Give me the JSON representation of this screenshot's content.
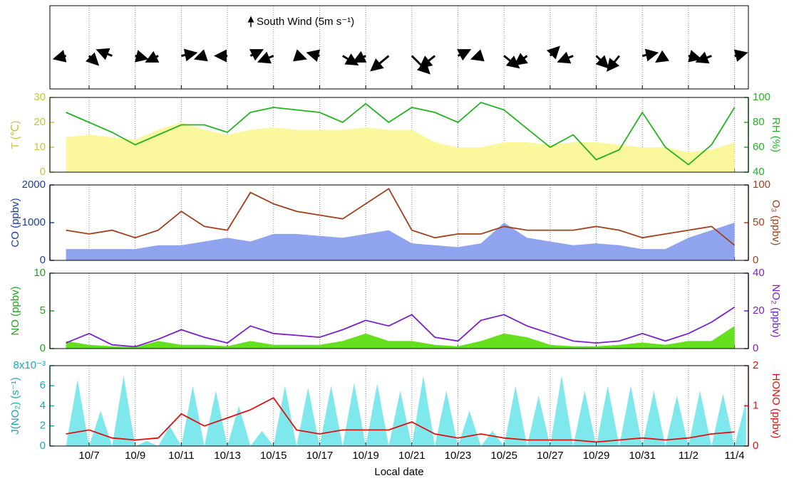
{
  "chart_data": [
    {
      "type": "quiver",
      "title": "South Wind (5m s⁻¹)",
      "color": "#000000",
      "x": [
        6,
        7,
        8,
        9,
        10,
        11,
        12,
        13,
        14,
        15,
        16,
        17,
        18,
        19,
        20,
        21,
        22,
        23,
        24,
        25,
        26,
        27,
        28,
        29,
        30,
        31,
        32,
        33,
        34,
        35
      ],
      "u": [
        -4,
        3,
        -5,
        4,
        -4,
        5,
        -3,
        -4,
        4,
        -5,
        3,
        -4,
        5,
        -4,
        -6,
        6,
        -5,
        4,
        -3,
        5,
        -4,
        3,
        -5,
        4,
        -4,
        5,
        -3,
        4,
        -5,
        4
      ],
      "v": [
        -1,
        -3,
        2,
        -1,
        -2,
        1,
        -1,
        0,
        2,
        -2,
        -1,
        1,
        -3,
        -2,
        -5,
        -6,
        -4,
        2,
        -1,
        -4,
        -3,
        3,
        -2,
        -4,
        -5,
        1,
        -2,
        -1,
        -2,
        1
      ]
    },
    {
      "type": "line",
      "ylabel": "T (℃)",
      "y2label": "RH (%)",
      "ylim": [
        0,
        30
      ],
      "yticks": [
        0,
        10,
        20,
        30
      ],
      "y2lim": [
        40,
        100
      ],
      "y2ticks": [
        40,
        60,
        80,
        100
      ],
      "x": [
        6,
        7,
        8,
        9,
        10,
        11,
        12,
        13,
        14,
        15,
        16,
        17,
        18,
        19,
        20,
        21,
        22,
        23,
        24,
        25,
        26,
        27,
        28,
        29,
        30,
        31,
        32,
        33,
        34,
        35
      ],
      "series": [
        {
          "name": "T",
          "style": "area",
          "color": "#faf79c",
          "label_color": "#c9c63a",
          "values": [
            14,
            15,
            14,
            13,
            17,
            20,
            17,
            15,
            17,
            18,
            17,
            17,
            17,
            18,
            17,
            17,
            12,
            10,
            10,
            12,
            12,
            11,
            12,
            12,
            11,
            10,
            10,
            8,
            9,
            12
          ]
        },
        {
          "name": "RH",
          "style": "line",
          "axis": "y2",
          "color": "#22b322",
          "label_color": "#22b322",
          "values": [
            88,
            80,
            72,
            62,
            70,
            78,
            78,
            72,
            88,
            92,
            90,
            88,
            80,
            95,
            80,
            92,
            88,
            80,
            96,
            90,
            75,
            60,
            70,
            50,
            58,
            88,
            60,
            46,
            62,
            92
          ]
        }
      ]
    },
    {
      "type": "line",
      "ylabel": "CO (ppbv)",
      "y2label": "O₃ (ppbv)",
      "ylim": [
        0,
        2000
      ],
      "yticks": [
        0,
        1000,
        2000
      ],
      "y2lim": [
        0,
        100
      ],
      "y2ticks": [
        0,
        50,
        100
      ],
      "x": [
        6,
        7,
        8,
        9,
        10,
        11,
        12,
        13,
        14,
        15,
        16,
        17,
        18,
        19,
        20,
        21,
        22,
        23,
        24,
        25,
        26,
        27,
        28,
        29,
        30,
        31,
        32,
        33,
        34,
        35
      ],
      "series": [
        {
          "name": "CO",
          "style": "area",
          "color": "#8fa3ee",
          "label_color": "#1f3fa0",
          "values": [
            300,
            300,
            300,
            300,
            400,
            400,
            500,
            600,
            500,
            700,
            700,
            650,
            600,
            700,
            800,
            450,
            400,
            350,
            450,
            1000,
            600,
            500,
            400,
            450,
            400,
            300,
            300,
            600,
            800,
            1000
          ]
        },
        {
          "name": "O₃",
          "style": "line",
          "axis": "y2",
          "color": "#a0401a",
          "label_color": "#a0401a",
          "values": [
            40,
            35,
            40,
            30,
            40,
            65,
            45,
            40,
            90,
            75,
            65,
            60,
            55,
            75,
            95,
            40,
            30,
            35,
            35,
            45,
            40,
            40,
            40,
            45,
            40,
            30,
            35,
            40,
            45,
            20
          ]
        }
      ]
    },
    {
      "type": "line",
      "ylabel": "NO (ppbv)",
      "y2label": "NO₂ (ppbv)",
      "ylim": [
        0,
        10
      ],
      "yticks": [
        0,
        5,
        10
      ],
      "y2lim": [
        0,
        40
      ],
      "y2ticks": [
        0,
        20,
        40
      ],
      "x": [
        6,
        7,
        8,
        9,
        10,
        11,
        12,
        13,
        14,
        15,
        16,
        17,
        18,
        19,
        20,
        21,
        22,
        23,
        24,
        25,
        26,
        27,
        28,
        29,
        30,
        31,
        32,
        33,
        34,
        35
      ],
      "series": [
        {
          "name": "NO",
          "style": "area",
          "color": "#66e01e",
          "label_color": "#22a322",
          "values": [
            1,
            0.5,
            0.3,
            0.2,
            1,
            0.5,
            0.5,
            0.3,
            1,
            0.5,
            0.5,
            0.5,
            1,
            2,
            1,
            1,
            0.5,
            0.3,
            1,
            2,
            1.5,
            0.5,
            0.3,
            0.3,
            0.5,
            0.8,
            0.5,
            1,
            1,
            3
          ]
        },
        {
          "name": "NO₂",
          "style": "line",
          "axis": "y2",
          "color": "#7a1fcc",
          "label_color": "#7a1fcc",
          "values": [
            3,
            8,
            2,
            1,
            5,
            10,
            6,
            3,
            12,
            8,
            7,
            6,
            10,
            15,
            12,
            18,
            6,
            4,
            15,
            18,
            12,
            8,
            4,
            3,
            4,
            8,
            4,
            8,
            14,
            22
          ]
        }
      ]
    },
    {
      "type": "line",
      "ylabel": "J(NO₂) (s⁻¹)",
      "y2label": "HONO (ppbv)",
      "xlabel": "Local date",
      "xlim": [
        5.3,
        35.6
      ],
      "xticks": [
        {
          "value": 7,
          "label": "10/7"
        },
        {
          "value": 9,
          "label": "10/9"
        },
        {
          "value": 11,
          "label": "10/11"
        },
        {
          "value": 13,
          "label": "10/13"
        },
        {
          "value": 15,
          "label": "10/15"
        },
        {
          "value": 17,
          "label": "10/17"
        },
        {
          "value": 19,
          "label": "10/19"
        },
        {
          "value": 21,
          "label": "10/21"
        },
        {
          "value": 23,
          "label": "10/23"
        },
        {
          "value": 25,
          "label": "10/25"
        },
        {
          "value": 27,
          "label": "10/27"
        },
        {
          "value": 29,
          "label": "10/29"
        },
        {
          "value": 31,
          "label": "10/31"
        },
        {
          "value": 33,
          "label": "11/2"
        },
        {
          "value": 35,
          "label": "11/4"
        }
      ],
      "ylim": [
        0,
        8
      ],
      "yticks": [
        0,
        2,
        4,
        6,
        {
          "value": 8,
          "label": "8x10⁻³"
        }
      ],
      "y2lim": [
        0,
        2
      ],
      "y2ticks": [
        0,
        1,
        2
      ],
      "x": [
        6,
        7,
        8,
        9,
        10,
        11,
        12,
        13,
        14,
        15,
        16,
        17,
        18,
        19,
        20,
        21,
        22,
        23,
        24,
        25,
        26,
        27,
        28,
        29,
        30,
        31,
        32,
        33,
        34,
        35
      ],
      "series": [
        {
          "name": "J(NO₂)",
          "style": "area",
          "color": "#7fe8ec",
          "label_color": "#1aa8b0",
          "x": [
            6,
            6.5,
            7,
            7.5,
            8,
            8.5,
            9,
            9.5,
            10,
            10.5,
            11,
            11.5,
            12,
            12.5,
            13,
            13.5,
            14,
            14.5,
            15,
            15.5,
            16,
            16.5,
            17,
            17.5,
            18,
            18.5,
            19,
            19.5,
            20,
            20.5,
            21,
            21.5,
            22,
            22.5,
            23,
            23.5,
            24,
            24.5,
            25,
            25.5,
            26,
            26.5,
            27,
            27.5,
            28,
            28.5,
            29,
            29.5,
            30,
            30.5,
            31,
            31.5,
            32,
            32.5,
            33,
            33.5,
            34,
            34.5,
            35,
            35.5
          ],
          "values": [
            0,
            6.6,
            0,
            3.5,
            0,
            7,
            0,
            0.5,
            0,
            2,
            0,
            6,
            0,
            5.5,
            0,
            4,
            0,
            1.5,
            0,
            6,
            0,
            5.8,
            0,
            6,
            0,
            6.3,
            0,
            6.2,
            0,
            5.5,
            0,
            7,
            0,
            5.5,
            0,
            3.5,
            0,
            1.5,
            0,
            6,
            0,
            5,
            0,
            7,
            0,
            5.5,
            0,
            6,
            0,
            6,
            0,
            5.5,
            0,
            5,
            0,
            5.5,
            0,
            5.2,
            0,
            4.5
          ]
        },
        {
          "name": "HONO",
          "style": "line",
          "axis": "y2",
          "color": "#e01010",
          "label_color": "#e01010",
          "values": [
            0.3,
            0.4,
            0.2,
            0.15,
            0.2,
            0.8,
            0.5,
            0.7,
            0.9,
            1.2,
            0.4,
            0.3,
            0.4,
            0.4,
            0.4,
            0.6,
            0.3,
            0.2,
            0.3,
            0.2,
            0.15,
            0.15,
            0.15,
            0.1,
            0.15,
            0.2,
            0.15,
            0.2,
            0.3,
            0.35
          ]
        }
      ]
    }
  ]
}
